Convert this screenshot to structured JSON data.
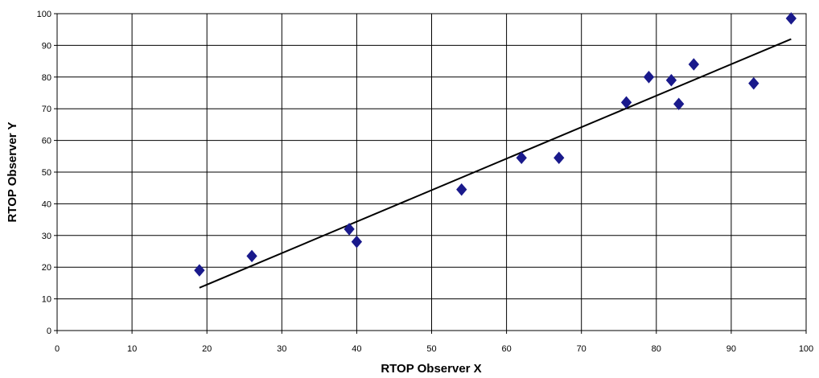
{
  "chart_data": {
    "type": "scatter",
    "title": "",
    "xlabel": "RTOP Observer X",
    "ylabel": "RTOP Observer Y",
    "xlim": [
      0,
      100
    ],
    "ylim": [
      0,
      100
    ],
    "x_ticks": [
      0,
      10,
      20,
      30,
      40,
      50,
      60,
      70,
      80,
      90,
      100
    ],
    "y_ticks": [
      0,
      10,
      20,
      30,
      40,
      50,
      60,
      70,
      80,
      90,
      100
    ],
    "grid": true,
    "legend": "none",
    "marker": "diamond",
    "marker_color": "#1a1a8c",
    "line_color": "#000000",
    "series": [
      {
        "x": [
          19,
          26,
          39,
          40,
          54,
          62,
          67,
          76,
          79,
          82,
          83,
          85,
          93,
          98
        ],
        "y": [
          19,
          23.5,
          32,
          28,
          44.5,
          54.5,
          54.5,
          72,
          80,
          79,
          71.5,
          84,
          78,
          98.5
        ]
      }
    ],
    "trendline": {
      "x": [
        19,
        98
      ],
      "y": [
        13.5,
        92
      ]
    }
  }
}
